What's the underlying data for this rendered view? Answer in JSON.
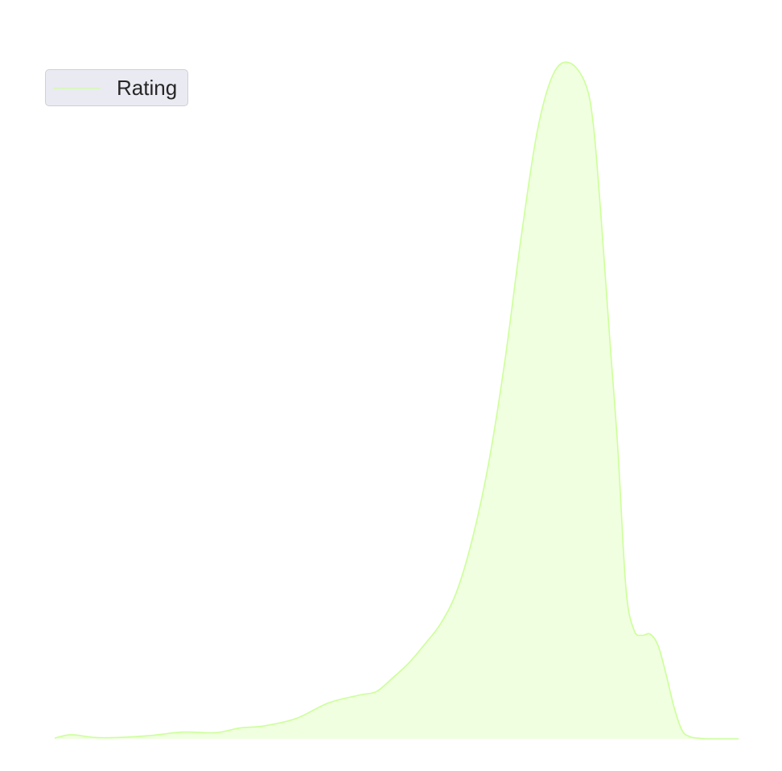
{
  "chart_data": {
    "type": "area",
    "title": "",
    "xlabel": "",
    "ylabel": "",
    "grid": false,
    "legend_position": "top-left",
    "xlim": [
      0.8,
      5.5
    ],
    "ylim": [
      0,
      1.0
    ],
    "series": [
      {
        "name": "Rating",
        "color": "#ccff99",
        "fill_opacity": 0.3,
        "x": [
          1.0,
          1.1,
          1.25,
          1.4,
          1.6,
          1.8,
          2.0,
          2.15,
          2.3,
          2.5,
          2.7,
          2.9,
          3.0,
          3.1,
          3.2,
          3.3,
          3.4,
          3.5,
          3.6,
          3.7,
          3.8,
          3.9,
          4.0,
          4.1,
          4.2,
          4.3,
          4.35,
          4.4,
          4.45,
          4.5,
          4.55,
          4.6,
          4.65,
          4.7,
          4.75,
          4.8,
          4.85,
          4.9,
          4.95,
          5.0,
          5.05,
          5.1,
          5.15,
          5.2,
          5.25
        ],
        "y": [
          0.001,
          0.006,
          0.002,
          0.002,
          0.005,
          0.01,
          0.009,
          0.016,
          0.019,
          0.03,
          0.053,
          0.065,
          0.07,
          0.09,
          0.112,
          0.14,
          0.171,
          0.219,
          0.3,
          0.412,
          0.563,
          0.744,
          0.9,
          0.984,
          1.0,
          0.968,
          0.903,
          0.757,
          0.59,
          0.428,
          0.223,
          0.161,
          0.153,
          0.155,
          0.138,
          0.095,
          0.046,
          0.012,
          0.003,
          0.001,
          0.0,
          0.0,
          0.0,
          0.0,
          0.0
        ]
      }
    ]
  }
}
